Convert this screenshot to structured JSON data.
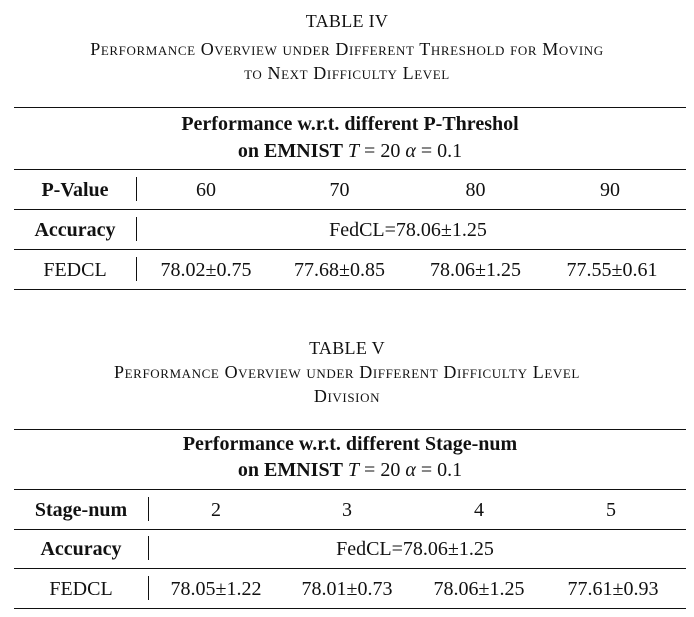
{
  "tables": [
    {
      "number": "TABLE IV",
      "caption_line1": "Performance Overview under Different Threshold for Moving",
      "caption_line2": "to Next Difficulty Level",
      "header_line1": "Performance w.r.t. different P-Threshol",
      "header_line2_prefix": "on EMNIST",
      "header_line2_math": {
        "T_symbol": "T",
        "eq": "=",
        "T_value": "20",
        "alpha_symbol": "α",
        "alpha_value": "0.1"
      },
      "rows": [
        {
          "label": "P-Value",
          "cells": [
            "60",
            "70",
            "80",
            "90"
          ]
        },
        {
          "label": "Accuracy",
          "span": "FedCL=78.06±1.25"
        },
        {
          "label": "FEDCL",
          "cells": [
            "78.02±0.75",
            "77.68±0.85",
            "78.06±1.25",
            "77.55±0.61"
          ]
        }
      ]
    },
    {
      "number": "TABLE V",
      "caption_line1": "Performance Overview under Different Difficulty Level",
      "caption_line2": "Division",
      "header_line1": "Performance w.r.t. different Stage-num",
      "header_line2_prefix": "on EMNIST",
      "header_line2_math": {
        "T_symbol": "T",
        "eq": "=",
        "T_value": "20",
        "alpha_symbol": "α",
        "alpha_value": "0.1"
      },
      "rows": [
        {
          "label": "Stage-num",
          "cells": [
            "2",
            "3",
            "4",
            "5"
          ]
        },
        {
          "label": "Accuracy",
          "span": "FedCL=78.06±1.25"
        },
        {
          "label": "FEDCL",
          "cells": [
            "78.05±1.22",
            "78.01±0.73",
            "78.06±1.25",
            "77.61±0.93"
          ]
        }
      ]
    }
  ]
}
